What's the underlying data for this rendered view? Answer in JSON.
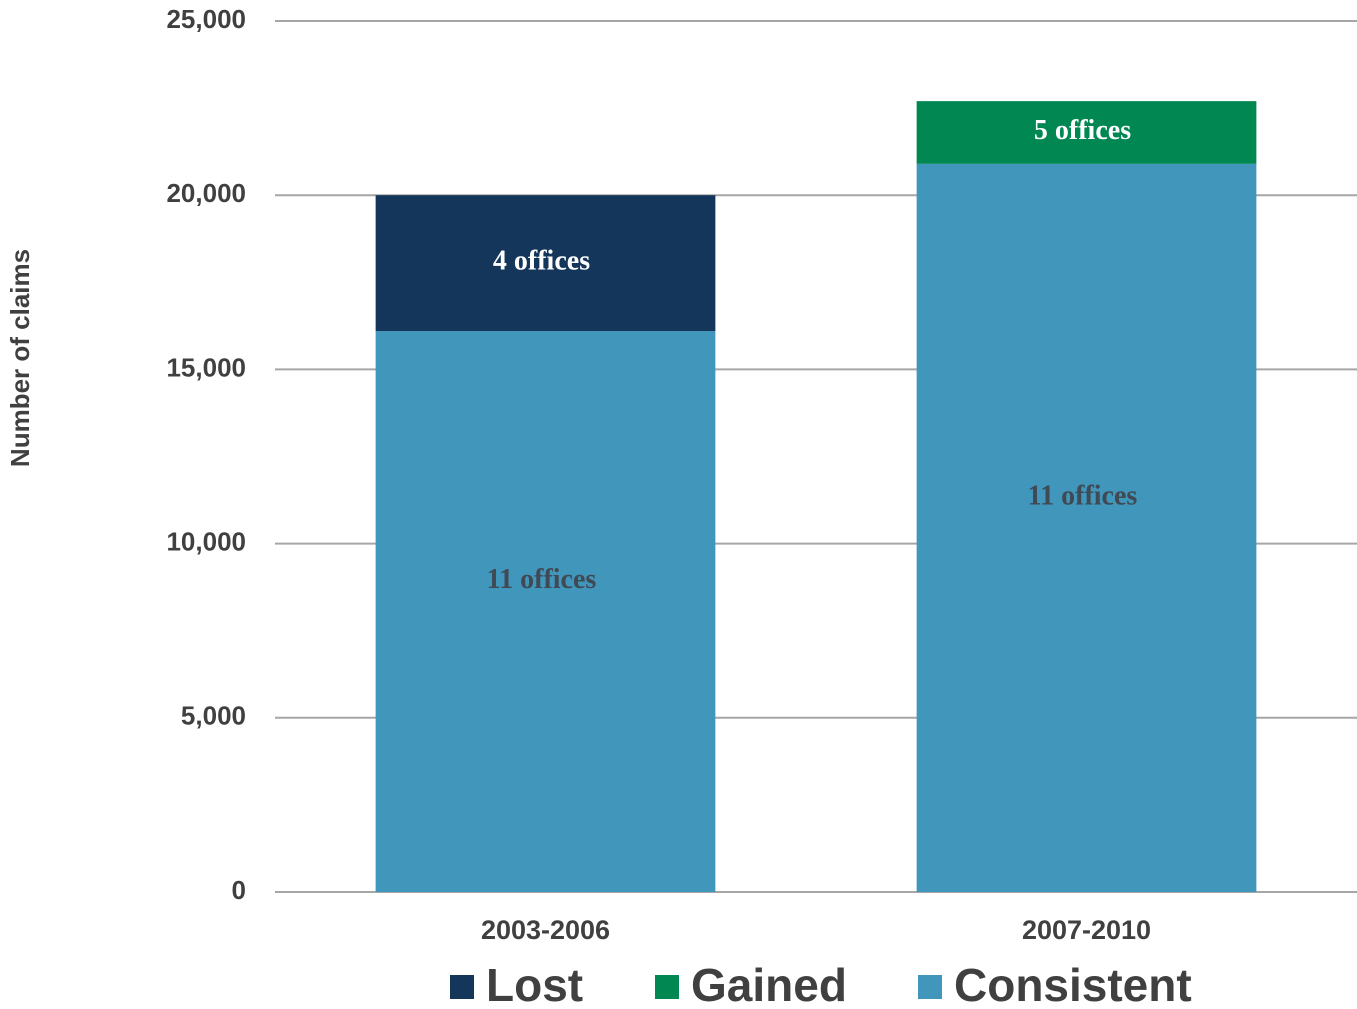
{
  "chart_data": {
    "type": "stacked_bar",
    "y_label": "Number of claims",
    "categories": [
      "2003-2006",
      "2007-2010"
    ],
    "series": [
      {
        "name": "Lost",
        "color": "#14365a",
        "values": [
          3900,
          null
        ],
        "value_labels": [
          "4 offices",
          null
        ]
      },
      {
        "name": "Gained",
        "color": "#008752",
        "values": [
          null,
          1800
        ],
        "value_labels": [
          null,
          "5 offices"
        ]
      },
      {
        "name": "Consistent",
        "color": "#4196bb",
        "values": [
          16100,
          20900
        ],
        "value_labels": [
          "11 offices",
          "11 offices"
        ]
      }
    ],
    "stack_order": [
      "Consistent",
      "Lost",
      "Gained"
    ],
    "ylim": [
      0,
      25000
    ],
    "yticks": [
      0,
      {
        "value": 5000,
        "label": "5,000"
      },
      {
        "value": 10000,
        "label": "10,000"
      },
      {
        "value": 15000,
        "label": "15,000"
      },
      {
        "value": 20000,
        "label": "20,000"
      },
      {
        "value": 25000,
        "label": "25,000"
      }
    ],
    "grid": true
  }
}
